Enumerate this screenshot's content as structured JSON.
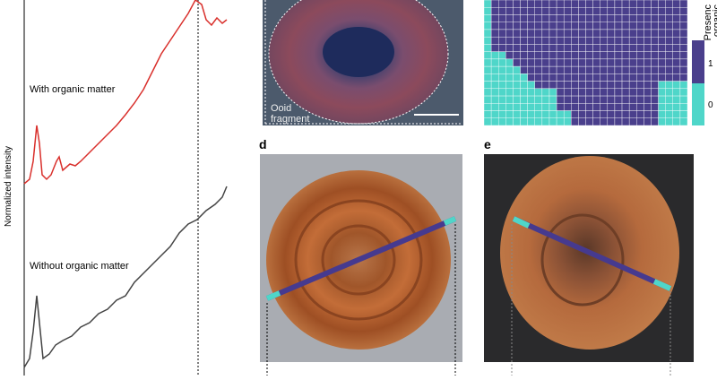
{
  "spectra": {
    "y_label": "Normalized intensity",
    "traces": [
      "With organic matter",
      "Without organic matter"
    ]
  },
  "image_c": {
    "label": [
      "Ooid",
      "fragment"
    ]
  },
  "map": {
    "legend_title": [
      "Presenc",
      "organic"
    ],
    "ticks": [
      "1",
      "0"
    ]
  },
  "panel_d": {
    "letter": "d"
  },
  "panel_e": {
    "letter": "e"
  }
}
